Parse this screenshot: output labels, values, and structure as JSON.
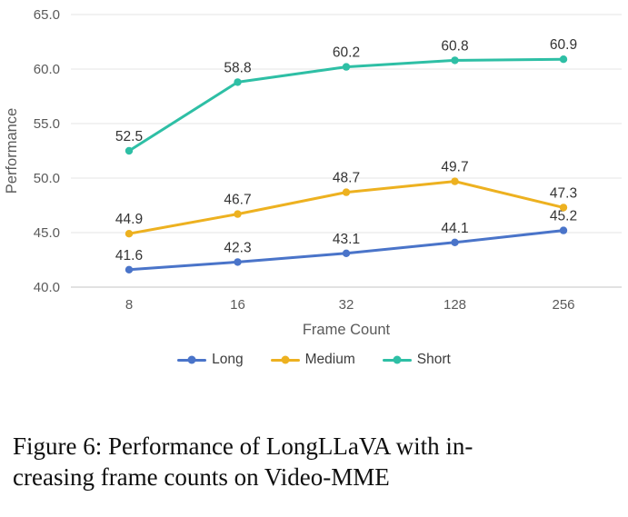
{
  "figure": {
    "caption_lines": [
      "Figure 6: Performance of LongLLaVA with in-",
      "creasing frame counts on Video-MME"
    ]
  },
  "chart_data": {
    "type": "line",
    "title": "",
    "x_categories": [
      "8",
      "16",
      "32",
      "128",
      "256"
    ],
    "xlabel": "Frame Count",
    "ylabel": "Performance",
    "ylim": [
      40.0,
      65.0
    ],
    "yticks": [
      40.0,
      45.0,
      50.0,
      55.0,
      60.0,
      65.0
    ],
    "grid": true,
    "data_labels": true,
    "legend_position": "bottom",
    "series": [
      {
        "name": "Long",
        "color": "#4a74c9",
        "values": [
          41.6,
          42.3,
          43.1,
          44.1,
          45.2
        ]
      },
      {
        "name": "Medium",
        "color": "#edb120",
        "values": [
          44.9,
          46.7,
          48.7,
          49.7,
          47.3
        ]
      },
      {
        "name": "Short",
        "color": "#2ebfa5",
        "values": [
          52.5,
          58.8,
          60.2,
          60.8,
          60.9
        ]
      }
    ]
  }
}
